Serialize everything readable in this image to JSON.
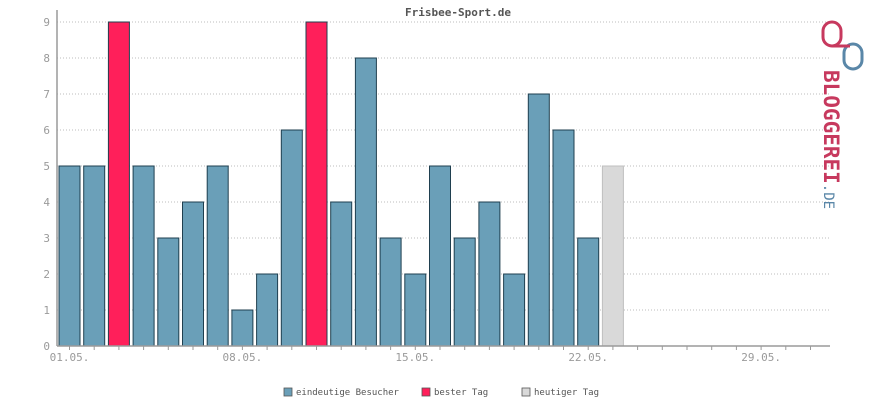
{
  "chart_data": {
    "type": "bar",
    "title": "Frisbee-Sport.de",
    "xlabel": "",
    "ylabel": "",
    "ylim": [
      0,
      9
    ],
    "yticks": [
      0,
      1,
      2,
      3,
      4,
      5,
      6,
      7,
      8,
      9
    ],
    "x_tick_labels": [
      "01.05.",
      "08.05.",
      "15.05.",
      "22.05.",
      "29.05."
    ],
    "days": 31,
    "values": [
      5,
      5,
      9,
      5,
      3,
      4,
      5,
      1,
      2,
      6,
      9,
      4,
      8,
      3,
      2,
      5,
      3,
      4,
      2,
      7,
      6,
      3,
      5
    ],
    "kinds": [
      "v",
      "v",
      "b",
      "v",
      "v",
      "v",
      "v",
      "v",
      "v",
      "v",
      "b",
      "v",
      "v",
      "v",
      "v",
      "v",
      "v",
      "v",
      "v",
      "v",
      "v",
      "v",
      "t"
    ],
    "grid": true,
    "legend_position": "bottom",
    "legend": [
      {
        "key": "v",
        "label": "eindeutige Besucher",
        "color": "#6a9fb8"
      },
      {
        "key": "b",
        "label": "bester Tag",
        "color": "#ff1f5a"
      },
      {
        "key": "t",
        "label": "heutiger Tag",
        "color": "#d9d9d9"
      }
    ]
  },
  "logo": {
    "text": "BLOGGEREI",
    "suffix": ".DE",
    "color": "#c7395e",
    "suffix_color": "#5a87a8"
  }
}
